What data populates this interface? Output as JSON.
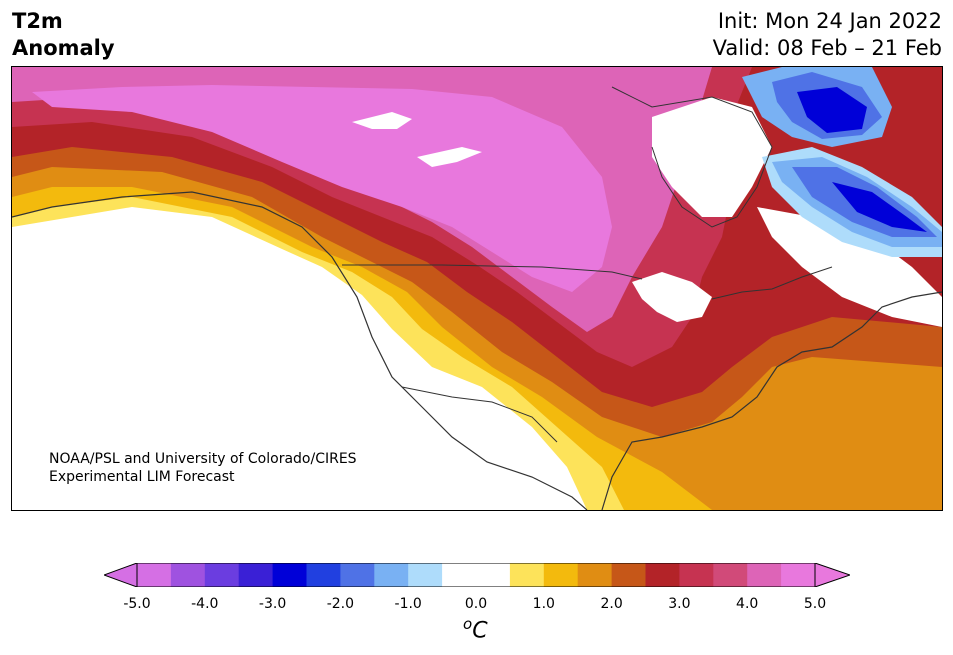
{
  "header": {
    "title_line1": "T2m",
    "title_line2": "Anomaly",
    "init": "Init: Mon 24 Jan 2022",
    "valid": "Valid: 08 Feb – 21 Feb"
  },
  "credit": {
    "line1": "NOAA/PSL and University of Colorado/CIRES",
    "line2": "Experimental LIM Forecast"
  },
  "colorbar": {
    "units_base": "C",
    "units_sup": "o",
    "ticks": [
      "-5.0",
      "-4.0",
      "-3.0",
      "-2.0",
      "-1.0",
      "0.0",
      "1.0",
      "2.0",
      "3.0",
      "4.0",
      "5.0"
    ],
    "colors": [
      "#d56fe4",
      "#9f52e0",
      "#6b3de0",
      "#3a20d6",
      "#0000d8",
      "#2140e0",
      "#4f72e6",
      "#79b1f3",
      "#aedcfb",
      "#ffffff",
      "#ffffff",
      "#fde35a",
      "#f3ba0d",
      "#e08d13",
      "#c65718",
      "#b32328",
      "#c63351",
      "#d14a79",
      "#dd64b7",
      "#e878dd"
    ],
    "under_color": "#d56fe4",
    "over_color": "#e878dd"
  },
  "map": {
    "region": "North America",
    "variable": "2 m temperature anomaly",
    "min_anomaly_c": -3.0,
    "max_anomaly_c": 5.0
  }
}
